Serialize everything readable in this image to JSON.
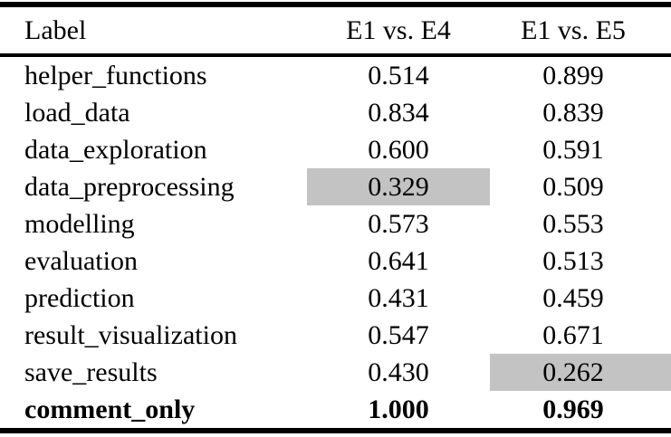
{
  "table": {
    "headers": [
      "Label",
      "E1 vs. E4",
      "E1 vs. E5"
    ],
    "highlight_color": "#c3c3c3",
    "rows": [
      {
        "label": "helper_functions",
        "values": [
          "0.514",
          "0.899"
        ],
        "highlight": null,
        "bold": false
      },
      {
        "label": "load_data",
        "values": [
          "0.834",
          "0.839"
        ],
        "highlight": null,
        "bold": false
      },
      {
        "label": "data_exploration",
        "values": [
          "0.600",
          "0.591"
        ],
        "highlight": null,
        "bold": false
      },
      {
        "label": "data_preprocessing",
        "values": [
          "0.329",
          "0.509"
        ],
        "highlight": 0,
        "bold": false
      },
      {
        "label": "modelling",
        "values": [
          "0.573",
          "0.553"
        ],
        "highlight": null,
        "bold": false
      },
      {
        "label": "evaluation",
        "values": [
          "0.641",
          "0.513"
        ],
        "highlight": null,
        "bold": false
      },
      {
        "label": "prediction",
        "values": [
          "0.431",
          "0.459"
        ],
        "highlight": null,
        "bold": false
      },
      {
        "label": "result_visualization",
        "values": [
          "0.547",
          "0.671"
        ],
        "highlight": null,
        "bold": false
      },
      {
        "label": "save_results",
        "values": [
          "0.430",
          "0.262"
        ],
        "highlight": 1,
        "bold": false
      },
      {
        "label": "comment_only",
        "values": [
          "1.000",
          "0.969"
        ],
        "highlight": null,
        "bold": true
      }
    ]
  }
}
